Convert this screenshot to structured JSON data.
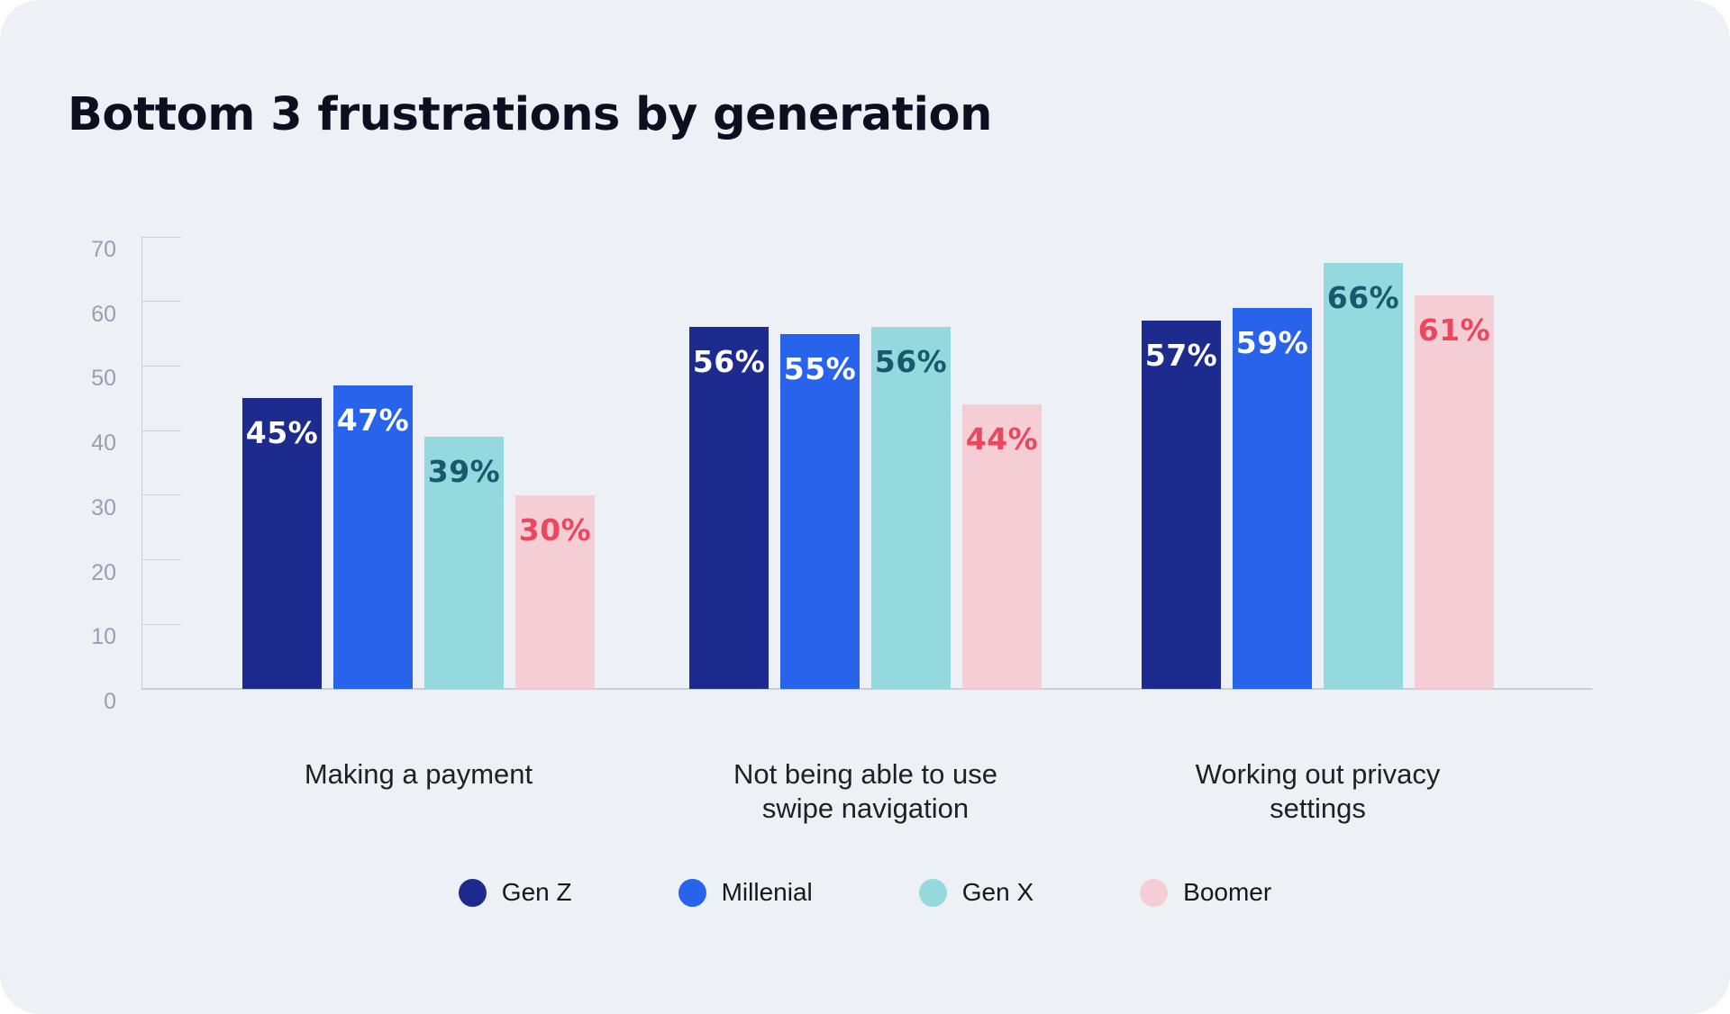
{
  "page": {
    "title": "Bottom 3 frustrations by generation"
  },
  "colors": {
    "card_background": "#edf1f6",
    "axis": "#c9cdd6",
    "tick_label": "#99a0ac",
    "category_label": "#1e1f29",
    "title": "#0d0e20"
  },
  "chart_data": {
    "type": "bar",
    "title": "Bottom 3 frustrations by generation",
    "categories": [
      "Making a payment",
      "Not being able to use\nswipe navigation",
      "Working out privacy\nsettings"
    ],
    "series": [
      {
        "name": "Gen Z",
        "color": "#1d2b8f",
        "label_color": "#ffffff",
        "values": [
          45,
          56,
          57
        ]
      },
      {
        "name": "Millenial",
        "color": "#2764eb",
        "label_color": "#ffffff",
        "values": [
          47,
          55,
          59
        ]
      },
      {
        "name": "Gen X",
        "color": "#93d9dd",
        "label_color": "#19586d",
        "values": [
          39,
          56,
          66
        ]
      },
      {
        "name": "Boomer",
        "color": "#f5cdd4",
        "label_color": "#e9485f",
        "values": [
          30,
          44,
          61
        ]
      }
    ],
    "value_suffix": "%",
    "y_axis": {
      "min": 0,
      "max": 70,
      "step": 10,
      "ticks": [
        0,
        10,
        20,
        30,
        40,
        50,
        60,
        70
      ]
    },
    "legend_position": "bottom",
    "grid": false
  }
}
